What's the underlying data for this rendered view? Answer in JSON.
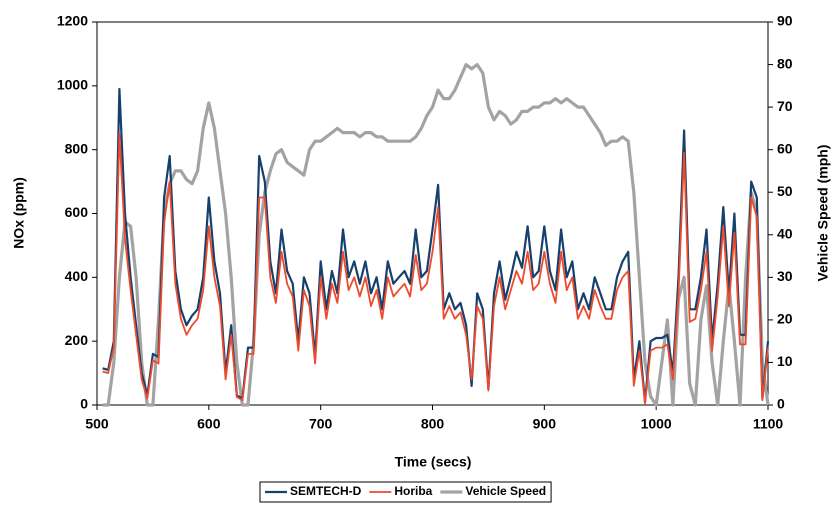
{
  "chart_data": {
    "type": "line",
    "xlabel": "Time (secs)",
    "ylabel": "NOx (ppm)",
    "y2label": "Vehicle Speed (mph)",
    "xlim": [
      500,
      1100
    ],
    "xticks": [
      500,
      600,
      700,
      800,
      900,
      1000,
      1100
    ],
    "ylim": [
      0,
      1200
    ],
    "yticks": [
      0,
      200,
      400,
      600,
      800,
      1000,
      1200
    ],
    "y2lim": [
      0,
      90
    ],
    "y2ticks": [
      0,
      10,
      20,
      30,
      40,
      50,
      60,
      70,
      80,
      90
    ],
    "legend": "bottom",
    "x": [
      505,
      510,
      515,
      520,
      525,
      530,
      535,
      540,
      545,
      550,
      555,
      560,
      565,
      570,
      575,
      580,
      585,
      590,
      595,
      600,
      605,
      610,
      615,
      620,
      625,
      630,
      635,
      640,
      645,
      650,
      655,
      660,
      665,
      670,
      675,
      680,
      685,
      690,
      695,
      700,
      705,
      710,
      715,
      720,
      725,
      730,
      735,
      740,
      745,
      750,
      755,
      760,
      765,
      770,
      775,
      780,
      785,
      790,
      795,
      800,
      805,
      810,
      815,
      820,
      825,
      830,
      835,
      840,
      845,
      850,
      855,
      860,
      865,
      870,
      875,
      880,
      885,
      890,
      895,
      900,
      905,
      910,
      915,
      920,
      925,
      930,
      935,
      940,
      945,
      950,
      955,
      960,
      965,
      970,
      975,
      980,
      985,
      990,
      995,
      1000,
      1005,
      1010,
      1015,
      1020,
      1025,
      1030,
      1035,
      1040,
      1045,
      1050,
      1055,
      1060,
      1065,
      1070,
      1075,
      1080,
      1085,
      1090,
      1095,
      1100
    ],
    "series": [
      {
        "name": "SEMTECH-D",
        "color": "#17406d",
        "width": 2.2,
        "values": [
          115,
          110,
          200,
          990,
          600,
          400,
          250,
          100,
          30,
          160,
          150,
          650,
          780,
          420,
          300,
          250,
          280,
          300,
          400,
          650,
          450,
          350,
          100,
          250,
          30,
          20,
          180,
          180,
          780,
          700,
          450,
          350,
          550,
          420,
          380,
          200,
          400,
          350,
          150,
          450,
          300,
          420,
          350,
          550,
          400,
          450,
          380,
          450,
          350,
          400,
          300,
          450,
          380,
          400,
          420,
          380,
          550,
          400,
          420,
          550,
          690,
          300,
          350,
          300,
          320,
          250,
          60,
          350,
          300,
          50,
          350,
          450,
          330,
          400,
          480,
          430,
          560,
          400,
          420,
          560,
          420,
          360,
          550,
          400,
          450,
          300,
          350,
          300,
          400,
          350,
          300,
          300,
          400,
          450,
          480,
          80,
          200,
          10,
          200,
          210,
          210,
          220,
          100,
          400,
          860,
          300,
          300,
          400,
          550,
          200,
          380,
          620,
          350,
          600,
          220,
          220,
          700,
          650,
          20,
          200
        ]
      },
      {
        "name": "Horiba",
        "color": "#ee4a2c",
        "width": 1.8,
        "values": [
          105,
          100,
          180,
          850,
          520,
          360,
          220,
          80,
          20,
          140,
          130,
          570,
          700,
          380,
          270,
          220,
          250,
          270,
          360,
          560,
          400,
          310,
          80,
          220,
          25,
          15,
          160,
          160,
          650,
          650,
          400,
          320,
          480,
          380,
          340,
          170,
          360,
          310,
          130,
          400,
          270,
          380,
          320,
          480,
          360,
          400,
          340,
          400,
          310,
          360,
          270,
          400,
          340,
          360,
          380,
          340,
          470,
          360,
          380,
          480,
          620,
          270,
          310,
          270,
          290,
          220,
          80,
          310,
          270,
          45,
          310,
          400,
          300,
          360,
          420,
          380,
          480,
          360,
          380,
          480,
          380,
          320,
          480,
          360,
          400,
          270,
          310,
          270,
          360,
          310,
          270,
          270,
          360,
          400,
          420,
          60,
          170,
          5,
          170,
          180,
          180,
          190,
          80,
          350,
          790,
          260,
          270,
          360,
          480,
          170,
          340,
          560,
          310,
          540,
          190,
          190,
          650,
          590,
          15,
          180
        ]
      },
      {
        "name": "Vehicle Speed",
        "color": "#a3a3a3",
        "width": 3.2,
        "axis": "y2",
        "values": [
          0,
          0,
          10,
          30,
          43,
          42,
          30,
          10,
          0,
          0,
          20,
          45,
          52,
          55,
          55,
          53,
          52,
          55,
          65,
          71,
          65,
          55,
          45,
          30,
          10,
          0,
          0,
          15,
          40,
          50,
          55,
          59,
          60,
          57,
          56,
          55,
          54,
          60,
          62,
          62,
          63,
          64,
          65,
          64,
          64,
          64,
          63,
          64,
          64,
          63,
          63,
          62,
          62,
          62,
          62,
          62,
          63,
          65,
          68,
          70,
          74,
          72,
          72,
          74,
          77,
          80,
          79,
          80,
          78,
          70,
          67,
          69,
          68,
          66,
          67,
          69,
          69,
          70,
          70,
          71,
          71,
          72,
          71,
          72,
          71,
          70,
          70,
          68,
          66,
          64,
          61,
          62,
          62,
          63,
          62,
          50,
          30,
          10,
          2,
          0,
          10,
          20,
          0,
          25,
          30,
          5,
          0,
          20,
          28,
          10,
          0,
          15,
          28,
          15,
          0,
          30,
          50,
          45,
          10,
          0
        ]
      }
    ]
  }
}
